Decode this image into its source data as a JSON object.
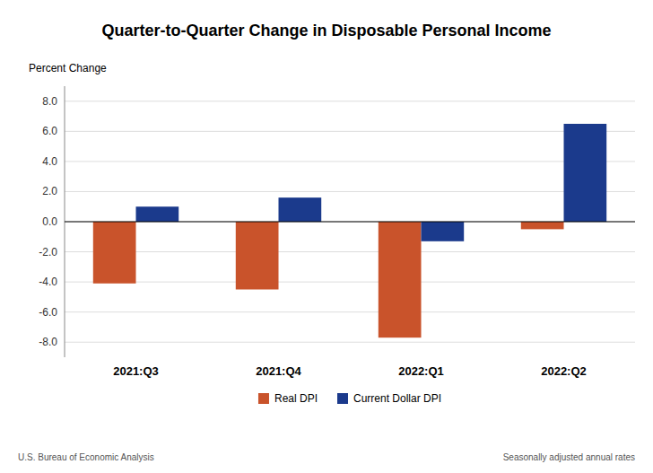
{
  "chart_data": {
    "type": "bar",
    "title": "Quarter-to-Quarter Change in Disposable Personal Income",
    "y_label": "Percent Change",
    "categories": [
      "2021:Q3",
      "2021:Q4",
      "2022:Q1",
      "2022:Q2"
    ],
    "series": [
      {
        "name": "Real DPI",
        "color": "#C9532B",
        "values": [
          -4.1,
          -4.5,
          -7.7,
          -0.5
        ]
      },
      {
        "name": "Current Dollar DPI",
        "color": "#1B3A8C",
        "values": [
          1.0,
          1.6,
          -1.3,
          6.5
        ]
      }
    ],
    "ylim": [
      -9.0,
      9.0
    ],
    "yticks": [
      {
        "value": -8.0,
        "label": "-8.0"
      },
      {
        "value": -6.0,
        "label": "-6.0"
      },
      {
        "value": -4.0,
        "label": "-4.0"
      },
      {
        "value": -2.0,
        "label": "-2.0"
      },
      {
        "value": 0.0,
        "label": "0.0"
      },
      {
        "value": 2.0,
        "label": "2.0"
      },
      {
        "value": 4.0,
        "label": "4.0"
      },
      {
        "value": 6.0,
        "label": "6.0"
      },
      {
        "value": 8.0,
        "label": "8.0"
      }
    ],
    "grid": true,
    "legend": "bottom",
    "annotations": [
      "U.S. Bureau of Economic Analysis",
      "Seasonally adjusted annual rates"
    ]
  }
}
